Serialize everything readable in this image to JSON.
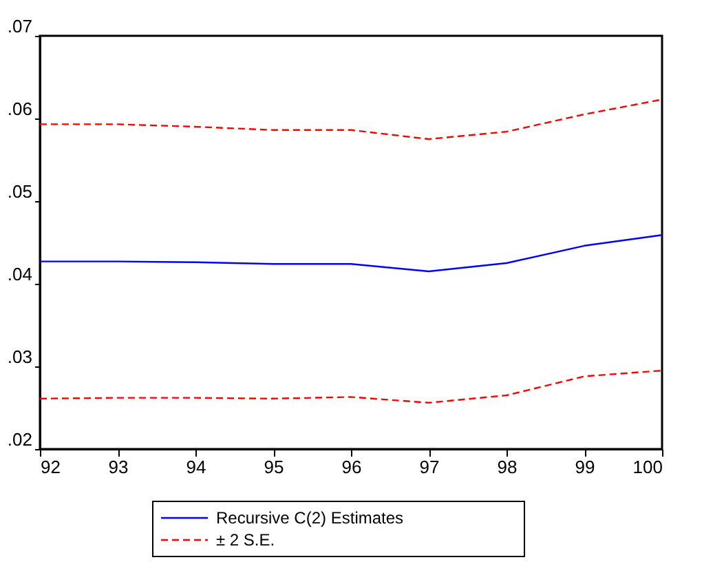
{
  "chart_data": {
    "type": "line",
    "x": [
      92,
      93,
      94,
      95,
      96,
      97,
      98,
      99,
      100
    ],
    "series": [
      {
        "name": "Recursive C(2) Estimates",
        "color": "#0000ff",
        "line_style": "solid",
        "values": [
          0.0427,
          0.0427,
          0.0426,
          0.0424,
          0.0424,
          0.0415,
          0.0425,
          0.0446,
          0.0459
        ]
      },
      {
        "name": "± 2 S.E.",
        "color": "#ff0000",
        "line_style": "dashed",
        "values": [
          0.0593,
          0.0593,
          0.059,
          0.0586,
          0.0586,
          0.0575,
          0.0584,
          0.0605,
          0.0623
        ]
      },
      {
        "color": "#ff0000",
        "line_style": "dashed",
        "values": [
          0.0261,
          0.0262,
          0.0262,
          0.0261,
          0.0263,
          0.0256,
          0.0265,
          0.0288,
          0.0295
        ]
      }
    ],
    "xlim": [
      92,
      100
    ],
    "xticks": [
      92,
      93,
      94,
      95,
      96,
      97,
      98,
      99,
      100
    ],
    "ylim": [
      0.02,
      0.07
    ],
    "yticks": [
      {
        "value": 0.02,
        "label": ".02"
      },
      {
        "value": 0.03,
        "label": ".03"
      },
      {
        "value": 0.04,
        "label": ".04"
      },
      {
        "value": 0.05,
        "label": ".05"
      },
      {
        "value": 0.06,
        "label": ".06"
      },
      {
        "value": 0.07,
        "label": ".07"
      }
    ],
    "grid": false,
    "legend": "bottom"
  }
}
